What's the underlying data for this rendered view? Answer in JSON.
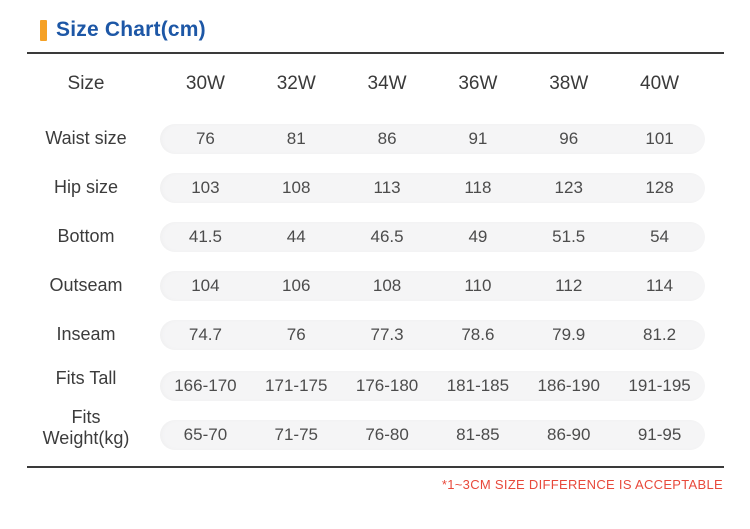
{
  "colors": {
    "title_blue": "#1D57A6",
    "accent_orange": "#F5A126",
    "band_gray": "#F5F5F6",
    "rule_dark": "#3A3A3A",
    "footnote_red": "#E8493B"
  },
  "chart_data": {
    "type": "table",
    "title": "Size Chart(cm)",
    "corner_label": "Size",
    "columns": [
      "30W",
      "32W",
      "34W",
      "36W",
      "38W",
      "40W"
    ],
    "rows": [
      {
        "label": "Waist size",
        "values": [
          "76",
          "81",
          "86",
          "91",
          "96",
          "101"
        ]
      },
      {
        "label": "Hip size",
        "values": [
          "103",
          "108",
          "113",
          "118",
          "123",
          "128"
        ]
      },
      {
        "label": "Bottom",
        "values": [
          "41.5",
          "44",
          "46.5",
          "49",
          "51.5",
          "54"
        ]
      },
      {
        "label": "Outseam",
        "values": [
          "104",
          "106",
          "108",
          "110",
          "112",
          "114"
        ]
      },
      {
        "label": "Inseam",
        "values": [
          "74.7",
          "76",
          "77.3",
          "78.6",
          "79.9",
          "81.2"
        ]
      },
      {
        "label": "Fits Tall",
        "values": [
          "166-170",
          "171-175",
          "176-180",
          "181-185",
          "186-190",
          "191-195"
        ]
      },
      {
        "label": "Fits Weight(kg)",
        "values": [
          "65-70",
          "71-75",
          "76-80",
          "81-85",
          "86-90",
          "91-95"
        ]
      }
    ],
    "footnote": "*1~3CM SIZE DIFFERENCE IS ACCEPTABLE",
    "layout": {
      "grid": false,
      "legend": false,
      "unit": "cm"
    }
  }
}
